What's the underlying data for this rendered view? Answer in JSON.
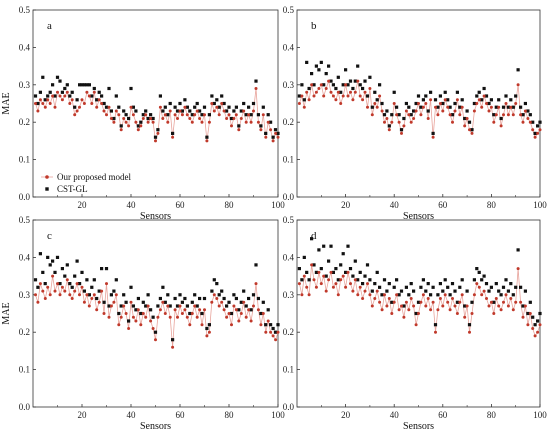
{
  "colors": {
    "proposed_line": "#e8a49c",
    "proposed_point": "#c0392b",
    "cst_point": "#111111",
    "axis": "#333333"
  },
  "chart_data": [
    {
      "type": "scatter",
      "panel_label": "a",
      "xlabel": "Sensors",
      "ylabel": "MAE",
      "xlim": [
        0,
        100
      ],
      "ylim": [
        0.0,
        0.5
      ],
      "xticks": [
        "20",
        "40",
        "60",
        "80",
        "100"
      ],
      "yticks": [
        "0.0",
        "0.1",
        "0.2",
        "0.3",
        "0.4",
        "0.5"
      ],
      "legend": [
        "Our proposed model",
        "CST-GL"
      ],
      "legend_position": "lower-left",
      "series": [
        {
          "name": "Our proposed model",
          "values": [
            0.25,
            0.23,
            0.26,
            0.25,
            0.24,
            0.26,
            0.25,
            0.27,
            0.24,
            0.28,
            0.27,
            0.26,
            0.27,
            0.28,
            0.25,
            0.26,
            0.22,
            0.23,
            0.24,
            0.26,
            0.25,
            0.28,
            0.27,
            0.25,
            0.28,
            0.24,
            0.26,
            0.25,
            0.23,
            0.22,
            0.24,
            0.21,
            0.2,
            0.23,
            0.22,
            0.18,
            0.21,
            0.2,
            0.19,
            0.24,
            0.22,
            0.2,
            0.18,
            0.19,
            0.21,
            0.22,
            0.2,
            0.21,
            0.2,
            0.15,
            0.17,
            0.24,
            0.21,
            0.22,
            0.2,
            0.23,
            0.16,
            0.22,
            0.21,
            0.23,
            0.22,
            0.24,
            0.22,
            0.21,
            0.2,
            0.22,
            0.23,
            0.21,
            0.2,
            0.22,
            0.15,
            0.2,
            0.25,
            0.23,
            0.24,
            0.22,
            0.25,
            0.23,
            0.21,
            0.22,
            0.19,
            0.21,
            0.22,
            0.18,
            0.21,
            0.23,
            0.2,
            0.22,
            0.2,
            0.23,
            0.29,
            0.2,
            0.18,
            0.22,
            0.16,
            0.2,
            0.18,
            0.15,
            0.17,
            0.16
          ]
        },
        {
          "name": "CST-GL",
          "values": [
            0.27,
            0.25,
            0.28,
            0.32,
            0.26,
            0.27,
            0.28,
            0.3,
            0.27,
            0.32,
            0.31,
            0.28,
            0.29,
            0.3,
            0.27,
            0.28,
            0.24,
            0.26,
            0.3,
            0.3,
            0.3,
            0.3,
            0.3,
            0.27,
            0.29,
            0.26,
            0.28,
            0.27,
            0.25,
            0.24,
            0.29,
            0.23,
            0.21,
            0.27,
            0.24,
            0.19,
            0.23,
            0.22,
            0.21,
            0.29,
            0.24,
            0.23,
            0.19,
            0.2,
            0.22,
            0.23,
            0.21,
            0.22,
            0.21,
            0.16,
            0.18,
            0.27,
            0.23,
            0.24,
            0.22,
            0.25,
            0.17,
            0.24,
            0.23,
            0.25,
            0.23,
            0.26,
            0.24,
            0.23,
            0.22,
            0.24,
            0.25,
            0.23,
            0.22,
            0.24,
            0.16,
            0.22,
            0.27,
            0.25,
            0.26,
            0.24,
            0.27,
            0.25,
            0.23,
            0.24,
            0.21,
            0.23,
            0.24,
            0.19,
            0.23,
            0.25,
            0.22,
            0.24,
            0.22,
            0.25,
            0.31,
            0.22,
            0.19,
            0.24,
            0.17,
            0.22,
            0.2,
            0.16,
            0.18,
            0.17
          ]
        }
      ]
    },
    {
      "type": "scatter",
      "panel_label": "b",
      "xlabel": "Sensors",
      "ylabel": "",
      "xlim": [
        0,
        100
      ],
      "ylim": [
        0.0,
        0.5
      ],
      "xticks": [
        "20",
        "40",
        "60",
        "80",
        "100"
      ],
      "yticks": [
        "0.0",
        "0.1",
        "0.2",
        "0.3",
        "0.4",
        "0.5"
      ],
      "series": [
        {
          "name": "Our proposed model",
          "values": [
            0.25,
            0.27,
            0.24,
            0.28,
            0.26,
            0.3,
            0.27,
            0.28,
            0.29,
            0.3,
            0.27,
            0.29,
            0.31,
            0.28,
            0.27,
            0.26,
            0.28,
            0.25,
            0.27,
            0.3,
            0.27,
            0.28,
            0.26,
            0.28,
            0.31,
            0.27,
            0.26,
            0.28,
            0.24,
            0.29,
            0.22,
            0.25,
            0.24,
            0.27,
            0.23,
            0.2,
            0.21,
            0.18,
            0.2,
            0.25,
            0.22,
            0.2,
            0.17,
            0.19,
            0.23,
            0.22,
            0.2,
            0.21,
            0.23,
            0.25,
            0.22,
            0.24,
            0.25,
            0.21,
            0.26,
            0.16,
            0.24,
            0.22,
            0.25,
            0.23,
            0.26,
            0.24,
            0.22,
            0.2,
            0.23,
            0.26,
            0.22,
            0.24,
            0.19,
            0.21,
            0.18,
            0.17,
            0.23,
            0.25,
            0.26,
            0.24,
            0.27,
            0.25,
            0.23,
            0.24,
            0.2,
            0.22,
            0.24,
            0.19,
            0.22,
            0.25,
            0.22,
            0.24,
            0.22,
            0.25,
            0.3,
            0.22,
            0.2,
            0.23,
            0.21,
            0.2,
            0.18,
            0.16,
            0.17,
            0.18
          ]
        },
        {
          "name": "CST-GL",
          "values": [
            0.27,
            0.3,
            0.26,
            0.36,
            0.29,
            0.33,
            0.3,
            0.35,
            0.34,
            0.36,
            0.3,
            0.33,
            0.35,
            0.31,
            0.3,
            0.29,
            0.32,
            0.28,
            0.3,
            0.34,
            0.3,
            0.31,
            0.29,
            0.31,
            0.35,
            0.3,
            0.29,
            0.31,
            0.27,
            0.32,
            0.24,
            0.28,
            0.26,
            0.3,
            0.25,
            0.22,
            0.23,
            0.19,
            0.22,
            0.28,
            0.24,
            0.22,
            0.18,
            0.21,
            0.25,
            0.24,
            0.22,
            0.23,
            0.25,
            0.27,
            0.24,
            0.26,
            0.27,
            0.23,
            0.28,
            0.17,
            0.26,
            0.24,
            0.27,
            0.25,
            0.28,
            0.26,
            0.24,
            0.22,
            0.25,
            0.28,
            0.24,
            0.26,
            0.21,
            0.23,
            0.2,
            0.18,
            0.25,
            0.27,
            0.28,
            0.26,
            0.29,
            0.27,
            0.25,
            0.26,
            0.22,
            0.24,
            0.26,
            0.21,
            0.24,
            0.27,
            0.24,
            0.26,
            0.24,
            0.27,
            0.34,
            0.24,
            0.22,
            0.25,
            0.23,
            0.22,
            0.2,
            0.17,
            0.19,
            0.2
          ]
        }
      ]
    },
    {
      "type": "scatter",
      "panel_label": "c",
      "xlabel": "Sensors",
      "ylabel": "MAE",
      "xlim": [
        0,
        100
      ],
      "ylim": [
        0.0,
        0.5
      ],
      "xticks": [
        "20",
        "40",
        "60",
        "80",
        "100"
      ],
      "yticks": [
        "0.0",
        "0.1",
        "0.2",
        "0.3",
        "0.4",
        "0.5"
      ],
      "series": [
        {
          "name": "Our proposed model",
          "values": [
            0.3,
            0.28,
            0.33,
            0.31,
            0.29,
            0.32,
            0.3,
            0.35,
            0.31,
            0.33,
            0.3,
            0.32,
            0.31,
            0.34,
            0.3,
            0.29,
            0.31,
            0.33,
            0.3,
            0.32,
            0.28,
            0.3,
            0.27,
            0.29,
            0.3,
            0.26,
            0.28,
            0.31,
            0.25,
            0.33,
            0.24,
            0.27,
            0.28,
            0.3,
            0.22,
            0.24,
            0.27,
            0.25,
            0.21,
            0.28,
            0.24,
            0.23,
            0.26,
            0.22,
            0.25,
            0.24,
            0.27,
            0.23,
            0.21,
            0.18,
            0.24,
            0.26,
            0.28,
            0.25,
            0.27,
            0.24,
            0.16,
            0.26,
            0.24,
            0.27,
            0.25,
            0.26,
            0.24,
            0.22,
            0.25,
            0.27,
            0.24,
            0.26,
            0.22,
            0.26,
            0.19,
            0.2,
            0.28,
            0.3,
            0.29,
            0.27,
            0.28,
            0.26,
            0.24,
            0.25,
            0.22,
            0.27,
            0.26,
            0.23,
            0.25,
            0.28,
            0.24,
            0.26,
            0.23,
            0.27,
            0.33,
            0.26,
            0.22,
            0.25,
            0.2,
            0.23,
            0.2,
            0.19,
            0.18,
            0.2
          ]
        },
        {
          "name": "CST-GL",
          "values": [
            0.34,
            0.32,
            0.41,
            0.36,
            0.33,
            0.4,
            0.38,
            0.39,
            0.36,
            0.4,
            0.33,
            0.37,
            0.35,
            0.38,
            0.33,
            0.32,
            0.35,
            0.39,
            0.33,
            0.36,
            0.31,
            0.34,
            0.3,
            0.32,
            0.34,
            0.29,
            0.31,
            0.37,
            0.28,
            0.37,
            0.27,
            0.3,
            0.31,
            0.34,
            0.25,
            0.27,
            0.3,
            0.28,
            0.23,
            0.32,
            0.27,
            0.26,
            0.29,
            0.25,
            0.28,
            0.27,
            0.3,
            0.26,
            0.24,
            0.2,
            0.27,
            0.29,
            0.32,
            0.28,
            0.3,
            0.27,
            0.18,
            0.29,
            0.27,
            0.3,
            0.28,
            0.29,
            0.27,
            0.25,
            0.28,
            0.3,
            0.27,
            0.29,
            0.25,
            0.29,
            0.21,
            0.22,
            0.31,
            0.34,
            0.33,
            0.3,
            0.31,
            0.29,
            0.27,
            0.28,
            0.25,
            0.3,
            0.29,
            0.26,
            0.28,
            0.31,
            0.27,
            0.29,
            0.26,
            0.3,
            0.38,
            0.29,
            0.25,
            0.28,
            0.22,
            0.26,
            0.22,
            0.21,
            0.2,
            0.22
          ]
        }
      ]
    },
    {
      "type": "scatter",
      "panel_label": "d",
      "xlabel": "Sensors",
      "ylabel": "",
      "xlim": [
        0,
        100
      ],
      "ylim": [
        0.0,
        0.5
      ],
      "xticks": [
        "20",
        "40",
        "60",
        "80",
        "100"
      ],
      "yticks": [
        "0.0",
        "0.1",
        "0.2",
        "0.3",
        "0.4",
        "0.5"
      ],
      "series": [
        {
          "name": "Our proposed model",
          "values": [
            0.33,
            0.3,
            0.35,
            0.32,
            0.3,
            0.38,
            0.34,
            0.32,
            0.36,
            0.33,
            0.35,
            0.31,
            0.34,
            0.36,
            0.32,
            0.33,
            0.3,
            0.34,
            0.35,
            0.32,
            0.36,
            0.33,
            0.31,
            0.34,
            0.3,
            0.32,
            0.29,
            0.31,
            0.33,
            0.3,
            0.27,
            0.29,
            0.31,
            0.28,
            0.26,
            0.3,
            0.27,
            0.29,
            0.25,
            0.28,
            0.3,
            0.26,
            0.27,
            0.24,
            0.28,
            0.26,
            0.29,
            0.27,
            0.22,
            0.25,
            0.28,
            0.3,
            0.27,
            0.29,
            0.26,
            0.28,
            0.2,
            0.26,
            0.29,
            0.27,
            0.3,
            0.28,
            0.26,
            0.29,
            0.27,
            0.25,
            0.28,
            0.3,
            0.24,
            0.27,
            0.2,
            0.25,
            0.3,
            0.33,
            0.32,
            0.3,
            0.31,
            0.29,
            0.27,
            0.28,
            0.25,
            0.29,
            0.27,
            0.26,
            0.28,
            0.3,
            0.27,
            0.29,
            0.26,
            0.28,
            0.37,
            0.28,
            0.24,
            0.27,
            0.22,
            0.25,
            0.21,
            0.19,
            0.2,
            0.22
          ]
        },
        {
          "name": "CST-GL",
          "values": [
            0.37,
            0.34,
            0.4,
            0.36,
            0.34,
            0.45,
            0.38,
            0.36,
            0.42,
            0.37,
            0.43,
            0.35,
            0.39,
            0.43,
            0.36,
            0.37,
            0.34,
            0.38,
            0.41,
            0.36,
            0.43,
            0.37,
            0.35,
            0.39,
            0.34,
            0.36,
            0.33,
            0.35,
            0.38,
            0.34,
            0.31,
            0.33,
            0.36,
            0.32,
            0.3,
            0.34,
            0.31,
            0.33,
            0.28,
            0.32,
            0.34,
            0.3,
            0.31,
            0.27,
            0.32,
            0.3,
            0.33,
            0.31,
            0.25,
            0.28,
            0.32,
            0.34,
            0.31,
            0.33,
            0.3,
            0.32,
            0.22,
            0.3,
            0.33,
            0.31,
            0.34,
            0.32,
            0.3,
            0.33,
            0.31,
            0.28,
            0.32,
            0.34,
            0.27,
            0.31,
            0.22,
            0.28,
            0.34,
            0.37,
            0.36,
            0.34,
            0.35,
            0.33,
            0.31,
            0.32,
            0.28,
            0.33,
            0.31,
            0.3,
            0.32,
            0.34,
            0.31,
            0.33,
            0.3,
            0.32,
            0.42,
            0.32,
            0.27,
            0.31,
            0.25,
            0.28,
            0.24,
            0.22,
            0.23,
            0.25
          ]
        }
      ]
    }
  ]
}
